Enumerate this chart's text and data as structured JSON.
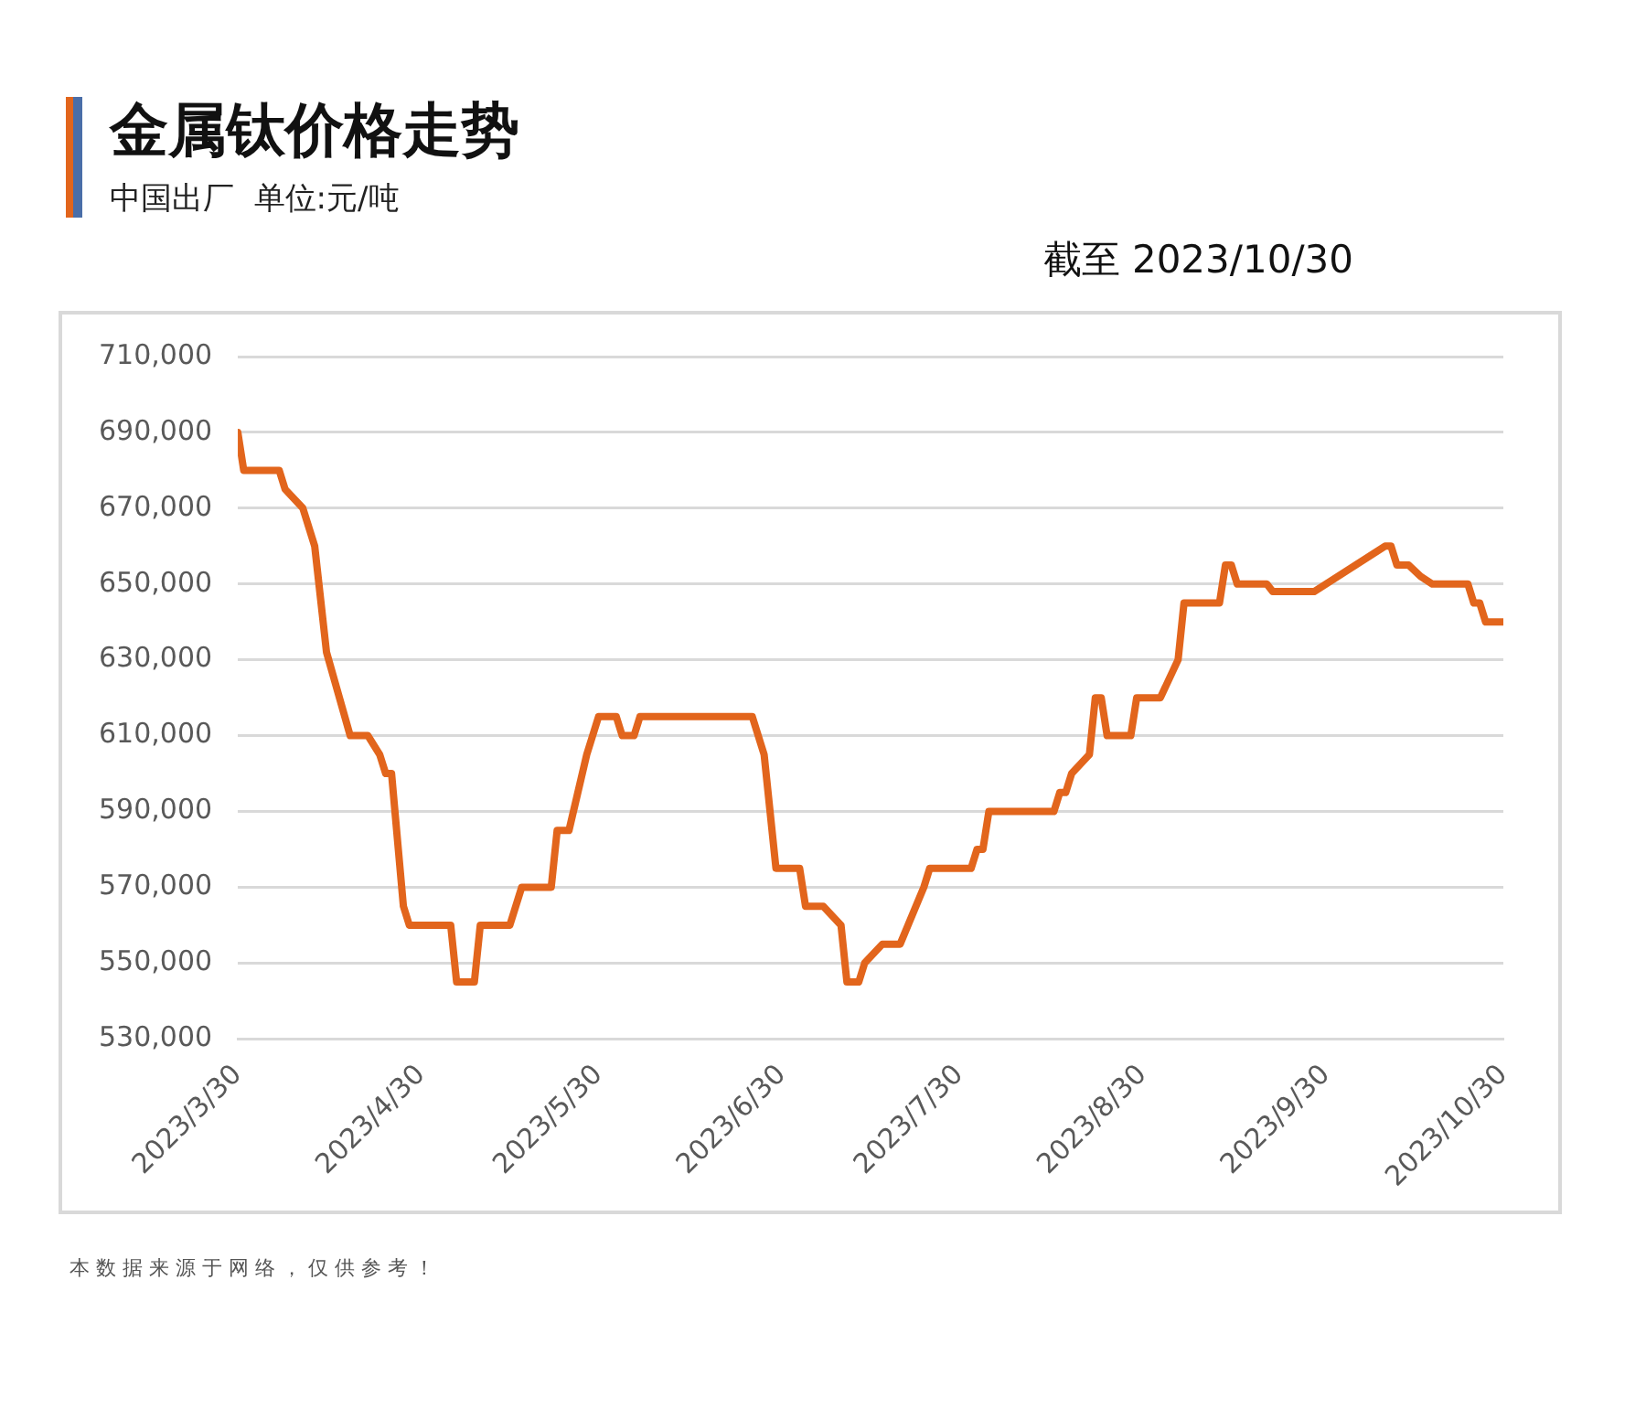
{
  "chart_data": {
    "type": "line",
    "title": "金属钛价格走势",
    "subtitle": "中国出厂  单位:元/吨",
    "annotations": [
      "截至 2023/10/30",
      "本 数 据 来 源 于 网 络 ， 仅 供 参 考 ！"
    ],
    "x": [
      "2023-03-30",
      "2023-03-31",
      "2023-04-06",
      "2023-04-07",
      "2023-04-10",
      "2023-04-12",
      "2023-04-14",
      "2023-04-18",
      "2023-04-21",
      "2023-04-23",
      "2023-04-24",
      "2023-04-25",
      "2023-04-27",
      "2023-04-28",
      "2023-05-05",
      "2023-05-06",
      "2023-05-09",
      "2023-05-10",
      "2023-05-15",
      "2023-05-17",
      "2023-05-22",
      "2023-05-23",
      "2023-05-25",
      "2023-05-28",
      "2023-05-30",
      "2023-06-02",
      "2023-06-03",
      "2023-06-05",
      "2023-06-06",
      "2023-06-25",
      "2023-06-27",
      "2023-06-29",
      "2023-07-03",
      "2023-07-04",
      "2023-07-07",
      "2023-07-10",
      "2023-07-11",
      "2023-07-13",
      "2023-07-14",
      "2023-07-17",
      "2023-07-20",
      "2023-07-24",
      "2023-07-25",
      "2023-08-01",
      "2023-08-02",
      "2023-08-03",
      "2023-08-04",
      "2023-08-15",
      "2023-08-16",
      "2023-08-17",
      "2023-08-18",
      "2023-08-21",
      "2023-08-22",
      "2023-08-23",
      "2023-08-24",
      "2023-08-28",
      "2023-08-29",
      "2023-09-02",
      "2023-09-05",
      "2023-09-06",
      "2023-09-12",
      "2023-09-13",
      "2023-09-14",
      "2023-09-15",
      "2023-09-20",
      "2023-09-21",
      "2023-09-28",
      "2023-10-10",
      "2023-10-11",
      "2023-10-12",
      "2023-10-14",
      "2023-10-16",
      "2023-10-18",
      "2023-10-24",
      "2023-10-25",
      "2023-10-26",
      "2023-10-27",
      "2023-10-30"
    ],
    "series": [
      {
        "color": "#e2651c",
        "values": [
          690000,
          680000,
          680000,
          675000,
          670000,
          660000,
          632000,
          610000,
          610000,
          605000,
          600000,
          600000,
          565000,
          560000,
          560000,
          545000,
          545000,
          560000,
          560000,
          570000,
          570000,
          585000,
          585000,
          605000,
          615000,
          615000,
          610000,
          610000,
          615000,
          615000,
          605000,
          575000,
          575000,
          565000,
          565000,
          560000,
          545000,
          545000,
          550000,
          555000,
          555000,
          570000,
          575000,
          575000,
          580000,
          580000,
          590000,
          590000,
          595000,
          595000,
          600000,
          605000,
          620000,
          620000,
          610000,
          610000,
          620000,
          620000,
          630000,
          645000,
          645000,
          655000,
          655000,
          650000,
          650000,
          648000,
          648000,
          660000,
          660000,
          655000,
          655000,
          652000,
          650000,
          650000,
          645000,
          645000,
          640000,
          640000
        ]
      }
    ],
    "xlim": [
      "2023-03-30",
      "2023-10-30"
    ],
    "xticks": [
      {
        "value": "2023-03-30",
        "label": "2023/3/30"
      },
      {
        "value": "2023-04-30",
        "label": "2023/4/30"
      },
      {
        "value": "2023-05-30",
        "label": "2023/5/30"
      },
      {
        "value": "2023-06-30",
        "label": "2023/6/30"
      },
      {
        "value": "2023-07-30",
        "label": "2023/7/30"
      },
      {
        "value": "2023-08-30",
        "label": "2023/8/30"
      },
      {
        "value": "2023-09-30",
        "label": "2023/9/30"
      },
      {
        "value": "2023-10-30",
        "label": "2023/10/30"
      }
    ],
    "ylim": [
      530000,
      710000
    ],
    "yticks": [
      {
        "value": 530000,
        "label": "530,000"
      },
      {
        "value": 550000,
        "label": "550,000"
      },
      {
        "value": 570000,
        "label": "570,000"
      },
      {
        "value": 590000,
        "label": "590,000"
      },
      {
        "value": 610000,
        "label": "610,000"
      },
      {
        "value": 630000,
        "label": "630,000"
      },
      {
        "value": 650000,
        "label": "650,000"
      },
      {
        "value": 670000,
        "label": "670,000"
      },
      {
        "value": 690000,
        "label": "690,000"
      },
      {
        "value": 710000,
        "label": "710,000"
      }
    ],
    "grid": "y",
    "legend": false,
    "marker": "none",
    "line_style": "solid"
  }
}
